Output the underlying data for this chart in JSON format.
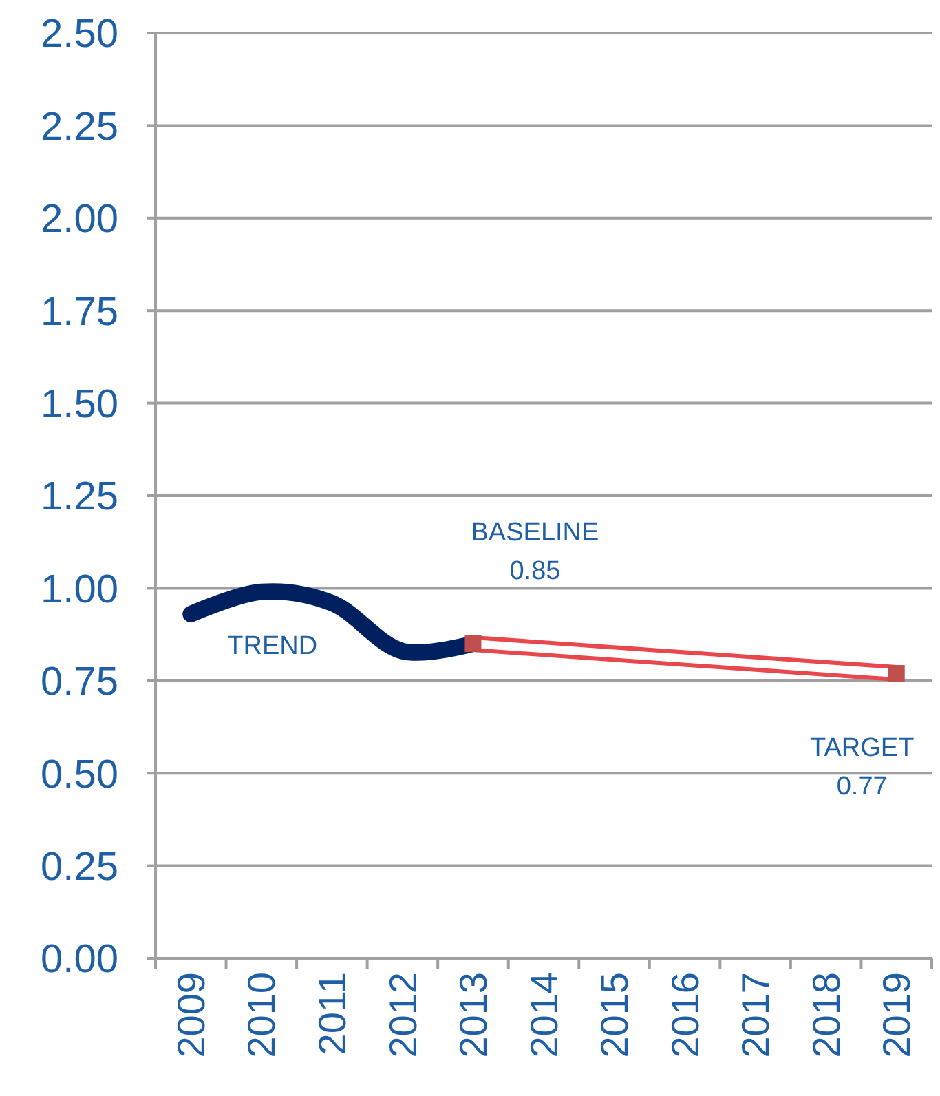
{
  "chart_data": {
    "type": "line",
    "categories": [
      "2009",
      "2010",
      "2011",
      "2012",
      "2013",
      "2014",
      "2015",
      "2016",
      "2017",
      "2018",
      "2019"
    ],
    "series": [
      {
        "name": "TREND",
        "color": "#002060",
        "values": [
          0.93,
          0.99,
          0.96,
          0.83,
          0.85,
          null,
          null,
          null,
          null,
          null,
          null
        ]
      },
      {
        "color": "#e8474c",
        "values": [
          null,
          null,
          null,
          null,
          0.85,
          null,
          null,
          null,
          null,
          null,
          0.77
        ],
        "marker": "square"
      }
    ],
    "annotations": [
      {
        "text": "BASELINE\n0.85",
        "x": "2013",
        "y": 0.85
      },
      {
        "text": "TARGET\n0.77",
        "x": "2019",
        "y": 0.77
      }
    ],
    "ylim": [
      0,
      2.5
    ],
    "yticks": [
      {
        "value": 0,
        "label": "0.00"
      },
      0.25,
      {
        "value": 0.5,
        "label": "0.50"
      },
      0.75,
      {
        "value": 1,
        "label": "1.00"
      },
      1.25,
      {
        "value": 1.5,
        "label": "1.50"
      },
      1.75,
      {
        "value": 2,
        "label": "2.00"
      },
      2.25,
      {
        "value": 2.5,
        "label": "2.50"
      }
    ],
    "grid": "y",
    "line_style": "solid"
  }
}
